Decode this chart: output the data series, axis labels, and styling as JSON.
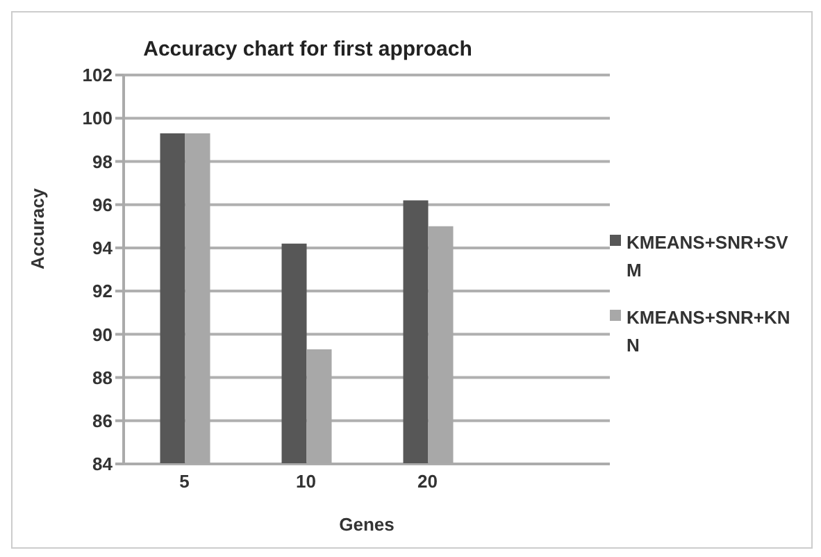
{
  "chart_data": {
    "type": "bar",
    "title": "Accuracy chart  for first approach",
    "xlabel": "Genes",
    "ylabel": "Accuracy",
    "categories": [
      "5",
      "10",
      "20",
      null
    ],
    "series": [
      {
        "name": "KMEANS+SNR+SVM",
        "color": "#575757",
        "values": [
          99.3,
          94.2,
          96.2,
          null
        ]
      },
      {
        "name": "KMEANS+SNR+KNN",
        "color": "#a8a8a8",
        "values": [
          99.3,
          89.3,
          95.0,
          null
        ]
      }
    ],
    "ylim": [
      84,
      102
    ],
    "yticks": [
      84,
      86,
      88,
      90,
      92,
      94,
      96,
      98,
      100,
      102
    ],
    "grid": "y",
    "legend": "right"
  }
}
